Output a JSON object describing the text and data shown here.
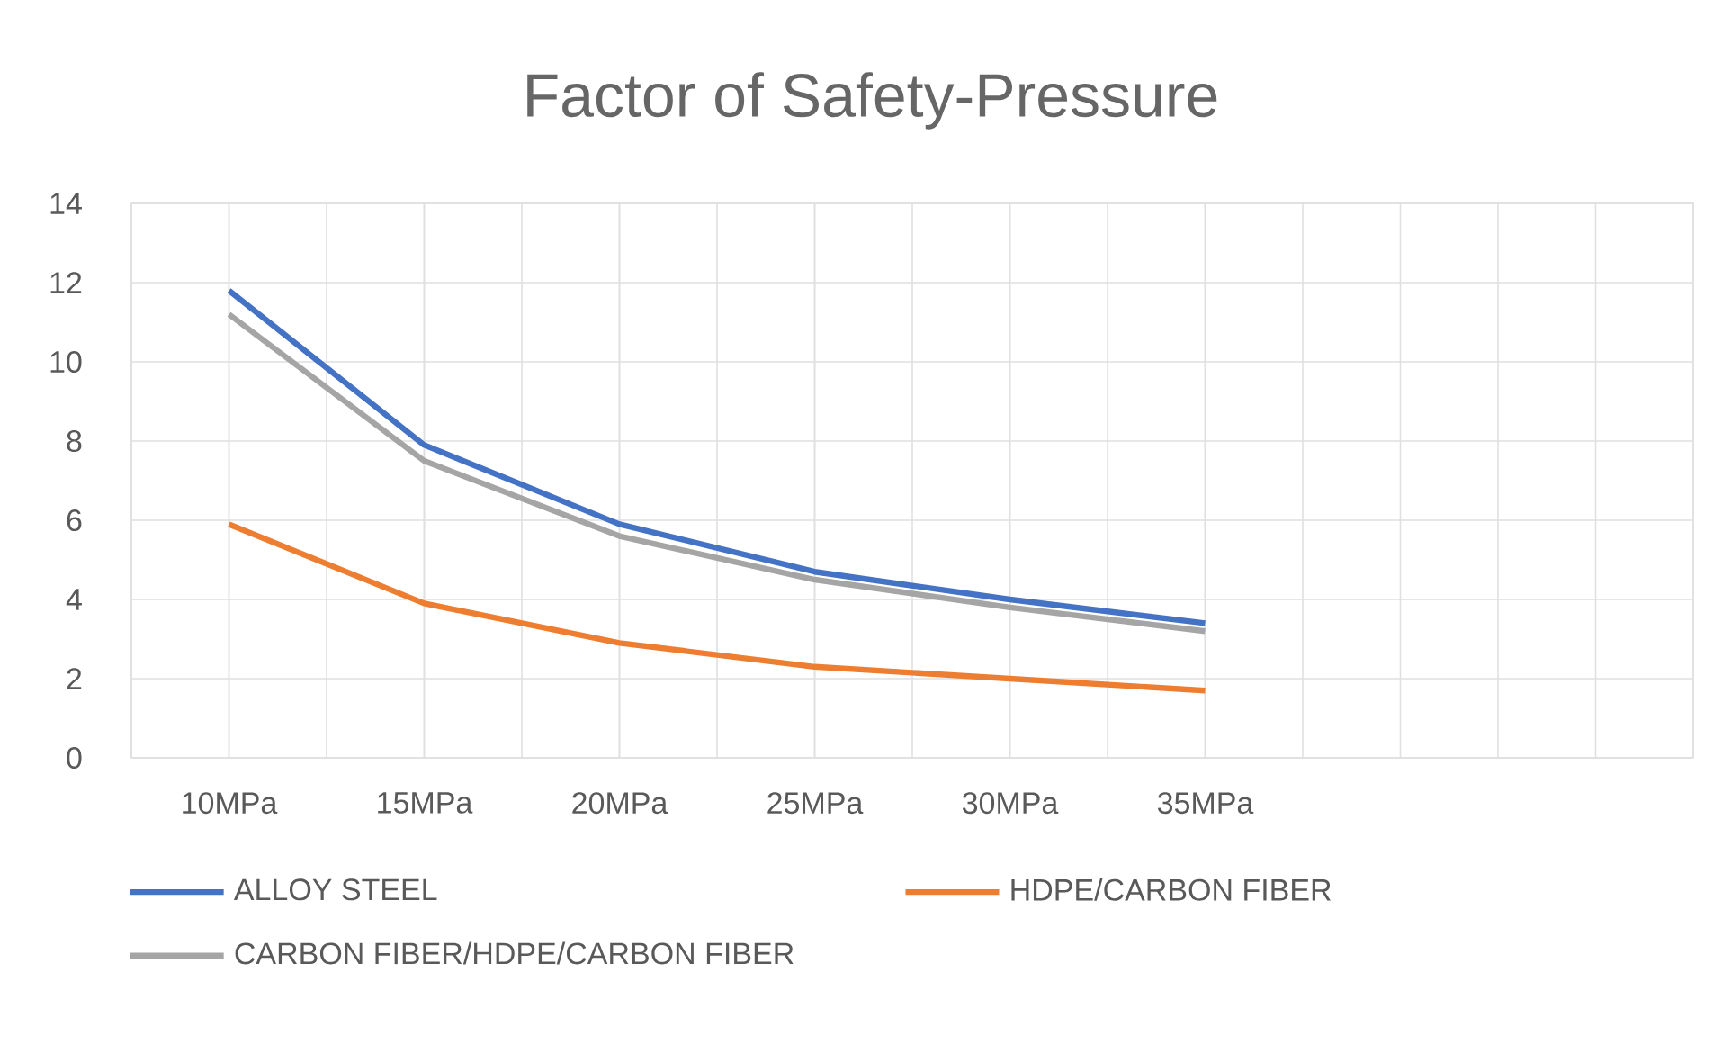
{
  "chart_data": {
    "type": "line",
    "title": "Factor of Safety-Pressure",
    "categories": [
      "10MPa",
      "15MPa",
      "20MPa",
      "25MPa",
      "30MPa",
      "35MPa",
      null,
      null
    ],
    "series": [
      {
        "name": "ALLOY STEEL",
        "color": "#4472c4",
        "values": [
          11.8,
          7.9,
          5.9,
          4.7,
          4.0,
          3.4,
          null,
          null
        ]
      },
      {
        "name": "HDPE/CARBON FIBER",
        "color": "#ed7d31",
        "values": [
          5.9,
          3.9,
          2.9,
          2.3,
          2.0,
          1.7,
          null,
          null
        ]
      },
      {
        "name": "CARBON FIBER/HDPE/CARBON FIBER",
        "color": "#a5a5a5",
        "values": [
          11.2,
          7.5,
          5.6,
          4.5,
          3.8,
          3.2,
          null,
          null
        ]
      }
    ],
    "ylim": [
      0,
      14
    ],
    "yticks": [
      0,
      2,
      4,
      6,
      8,
      10,
      12,
      14
    ],
    "grid": true,
    "legend": "bottom",
    "marker": "none",
    "line_style": "solid"
  }
}
